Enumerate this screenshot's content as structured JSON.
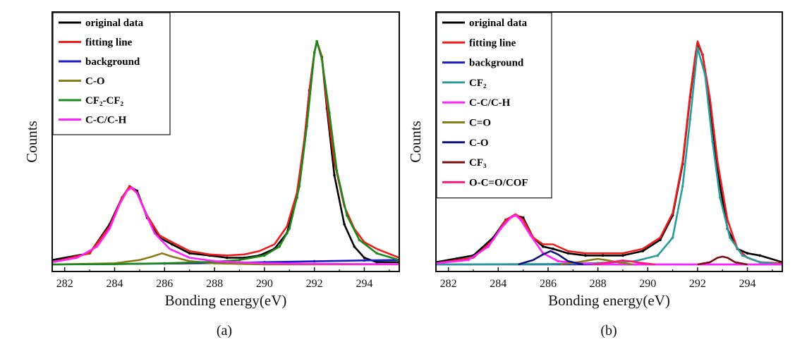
{
  "chart_data": [
    {
      "id": "a",
      "type": "line",
      "caption": "(a)",
      "xlabel": "Bonding energy(eV)",
      "ylabel": "Counts",
      "xlim": [
        281.5,
        295.4
      ],
      "ylim": [
        0,
        1.1
      ],
      "xticks": [
        282,
        284,
        286,
        288,
        290,
        292,
        294
      ],
      "y_tick_labels": false,
      "grid": false,
      "legend_position": "top-left",
      "series": [
        {
          "name": "original data",
          "color": "#000000",
          "marker": true,
          "x": [
            281.5,
            283.0,
            283.8,
            284.3,
            284.6,
            284.9,
            285.3,
            285.8,
            286.3,
            287.0,
            287.8,
            288.5,
            289.2,
            289.8,
            290.4,
            290.9,
            291.3,
            291.6,
            291.8,
            292.0,
            292.1,
            292.3,
            292.5,
            292.8,
            293.2,
            293.6,
            294.0,
            294.5,
            295.4
          ],
          "y": [
            0.02,
            0.05,
            0.18,
            0.3,
            0.35,
            0.33,
            0.21,
            0.12,
            0.09,
            0.05,
            0.04,
            0.03,
            0.03,
            0.04,
            0.07,
            0.14,
            0.3,
            0.55,
            0.78,
            0.95,
            1.0,
            0.93,
            0.7,
            0.4,
            0.18,
            0.08,
            0.03,
            0.01,
            0.01
          ]
        },
        {
          "name": "fitting line",
          "color": "#ee1c1c",
          "marker": false,
          "x": [
            281.5,
            283.0,
            283.8,
            284.3,
            284.6,
            284.9,
            285.3,
            285.8,
            286.3,
            287.0,
            287.8,
            288.5,
            289.2,
            289.8,
            290.4,
            290.9,
            291.3,
            291.6,
            291.8,
            292.0,
            292.1,
            292.3,
            292.5,
            292.8,
            293.2,
            293.6,
            294.0,
            294.5,
            295.4
          ],
          "y": [
            0.01,
            0.05,
            0.17,
            0.3,
            0.35,
            0.32,
            0.22,
            0.13,
            0.1,
            0.06,
            0.045,
            0.04,
            0.045,
            0.06,
            0.09,
            0.17,
            0.32,
            0.56,
            0.78,
            0.95,
            1.0,
            0.93,
            0.72,
            0.46,
            0.26,
            0.16,
            0.1,
            0.07,
            0.03
          ]
        },
        {
          "name": "background",
          "color": "#1a1ac8",
          "marker": true,
          "x": [
            281.5,
            284,
            286,
            288,
            290,
            292,
            294,
            295.4
          ],
          "y": [
            0.0,
            0.002,
            0.004,
            0.006,
            0.01,
            0.014,
            0.018,
            0.02
          ]
        },
        {
          "name": "C-O",
          "color": "#8a7a18",
          "marker": false,
          "x": [
            281.5,
            284.0,
            285.0,
            285.5,
            285.9,
            286.3,
            287.0,
            288.0,
            290.0,
            292.0,
            295.4
          ],
          "y": [
            0.0,
            0.005,
            0.02,
            0.035,
            0.05,
            0.035,
            0.015,
            0.005,
            0.0,
            0.0,
            0.0
          ]
        },
        {
          "name": "CF₂-CF₂",
          "color": "#1b8a1b",
          "marker": true,
          "x": [
            281.5,
            284,
            286,
            288,
            289,
            290,
            290.6,
            291.0,
            291.4,
            291.7,
            292.0,
            292.1,
            292.3,
            292.6,
            292.9,
            293.3,
            293.8,
            294.5,
            295.4
          ],
          "y": [
            0.0,
            0.002,
            0.005,
            0.012,
            0.02,
            0.04,
            0.08,
            0.16,
            0.35,
            0.62,
            0.95,
            1.0,
            0.92,
            0.68,
            0.42,
            0.22,
            0.11,
            0.05,
            0.02
          ]
        },
        {
          "name": "C-C/C-H",
          "color": "#ff22ff",
          "marker": false,
          "x": [
            281.5,
            282.5,
            283.3,
            283.8,
            284.2,
            284.5,
            284.7,
            284.9,
            285.2,
            285.6,
            286.2,
            287.0,
            288.0,
            290.0,
            292.0,
            294.0,
            295.4
          ],
          "y": [
            0.01,
            0.03,
            0.08,
            0.16,
            0.27,
            0.33,
            0.345,
            0.32,
            0.24,
            0.14,
            0.07,
            0.03,
            0.015,
            0.005,
            0.003,
            0.002,
            0.001
          ]
        }
      ]
    },
    {
      "id": "b",
      "type": "line",
      "caption": "(b)",
      "xlabel": "Bonding energy(eV)",
      "ylabel": "Counts",
      "xlim": [
        281.5,
        295.4
      ],
      "ylim": [
        0,
        1.1
      ],
      "xticks": [
        282,
        284,
        286,
        288,
        290,
        292,
        294
      ],
      "y_tick_labels": false,
      "grid": false,
      "legend_position": "top-left",
      "series": [
        {
          "name": "original data",
          "color": "#000000",
          "marker": true,
          "x": [
            281.5,
            283.0,
            283.8,
            284.3,
            284.7,
            285.0,
            285.4,
            285.8,
            286.2,
            286.8,
            287.5,
            288.2,
            289.0,
            289.8,
            290.5,
            291.0,
            291.4,
            291.7,
            291.9,
            292.0,
            292.2,
            292.5,
            292.8,
            293.2,
            293.6,
            294.0,
            294.5,
            295.4
          ],
          "y": [
            0.01,
            0.04,
            0.12,
            0.2,
            0.22,
            0.21,
            0.12,
            0.08,
            0.07,
            0.05,
            0.04,
            0.04,
            0.04,
            0.06,
            0.11,
            0.22,
            0.45,
            0.75,
            0.92,
            0.99,
            0.94,
            0.72,
            0.42,
            0.16,
            0.07,
            0.05,
            0.04,
            0.01
          ]
        },
        {
          "name": "fitting line",
          "color": "#ee1c1c",
          "marker": false,
          "x": [
            281.5,
            283.0,
            283.8,
            284.3,
            284.7,
            285.0,
            285.4,
            285.8,
            286.2,
            286.8,
            287.5,
            288.2,
            289.0,
            289.8,
            290.5,
            291.0,
            291.4,
            291.7,
            291.9,
            292.0,
            292.2,
            292.5,
            292.8,
            293.2,
            293.6,
            294.0,
            294.5,
            295.4
          ],
          "y": [
            0.005,
            0.03,
            0.11,
            0.2,
            0.225,
            0.2,
            0.12,
            0.09,
            0.09,
            0.06,
            0.05,
            0.05,
            0.05,
            0.07,
            0.12,
            0.23,
            0.46,
            0.76,
            0.93,
            1.0,
            0.94,
            0.74,
            0.46,
            0.2,
            0.07,
            0.03,
            0.01,
            0.005
          ]
        },
        {
          "name": "background",
          "color": "#1a1ac8",
          "marker": false,
          "x": [
            281.5,
            295.4
          ],
          "y": [
            0.0,
            0.0
          ]
        },
        {
          "name": "CF₂",
          "color": "#2a9a9a",
          "marker": true,
          "x": [
            281.5,
            286,
            288,
            289.5,
            290.4,
            291.0,
            291.4,
            291.7,
            292.0,
            292.3,
            292.6,
            292.9,
            293.3,
            293.8,
            294.5,
            295.4
          ],
          "y": [
            0.0,
            0.002,
            0.006,
            0.015,
            0.04,
            0.12,
            0.35,
            0.65,
            0.97,
            0.85,
            0.55,
            0.3,
            0.12,
            0.04,
            0.01,
            0.0
          ]
        },
        {
          "name": "C-C/C-H",
          "color": "#ff22ff",
          "marker": true,
          "x": [
            281.5,
            282.8,
            283.6,
            284.1,
            284.5,
            284.7,
            284.9,
            285.3,
            285.8,
            286.4,
            287.2,
            288.2,
            289.5,
            295.4
          ],
          "y": [
            0.005,
            0.02,
            0.08,
            0.16,
            0.21,
            0.22,
            0.2,
            0.13,
            0.05,
            0.015,
            0.005,
            0.001,
            0.0,
            0.0
          ]
        },
        {
          "name": "C=O",
          "color": "#8a7a18",
          "marker": false,
          "x": [
            286.5,
            287.2,
            287.7,
            288.0,
            288.3,
            288.8,
            289.4
          ],
          "y": [
            0.0,
            0.01,
            0.02,
            0.025,
            0.02,
            0.01,
            0.0
          ]
        },
        {
          "name": "C-O",
          "color": "#10107a",
          "marker": false,
          "x": [
            284.8,
            285.4,
            285.8,
            286.1,
            286.4,
            286.8,
            287.4
          ],
          "y": [
            0.0,
            0.02,
            0.045,
            0.06,
            0.045,
            0.015,
            0.0
          ]
        },
        {
          "name": "CF₃",
          "color": "#7a0e0e",
          "marker": false,
          "x": [
            292.0,
            292.5,
            292.8,
            293.0,
            293.2,
            293.5,
            294.0
          ],
          "y": [
            0.0,
            0.01,
            0.03,
            0.035,
            0.03,
            0.01,
            0.0
          ]
        },
        {
          "name": "O-C=O/COF",
          "color": "#ff1a7a",
          "marker": false,
          "x": [
            287.8,
            288.4,
            288.8,
            289.0,
            289.3,
            289.8,
            290.3
          ],
          "y": [
            0.0,
            0.008,
            0.015,
            0.018,
            0.014,
            0.006,
            0.0
          ]
        }
      ]
    }
  ]
}
